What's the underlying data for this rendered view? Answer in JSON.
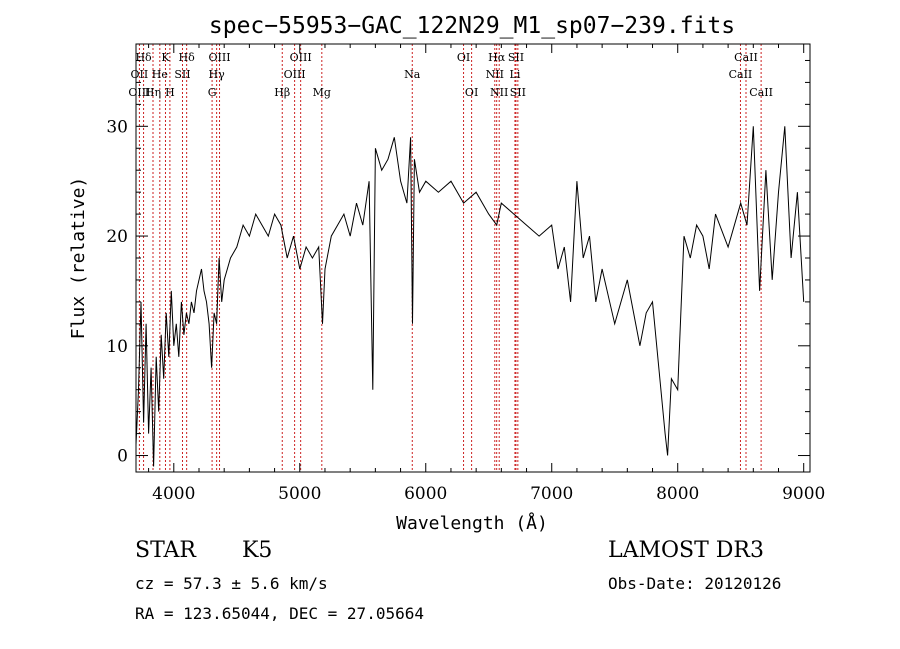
{
  "chart_data": {
    "type": "line",
    "title": "spec−55953−GAC_122N29_M1_sp07−239.fits",
    "xlabel": "Wavelength (Å)",
    "ylabel": "Flux (relative)",
    "xlim": [
      3700,
      9050
    ],
    "ylim": [
      -1.5,
      37.5
    ],
    "xticks": [
      4000,
      5000,
      6000,
      7000,
      8000,
      9000
    ],
    "yticks": [
      0,
      10,
      20,
      30
    ],
    "grid": false,
    "series": [
      {
        "name": "flux",
        "x": [
          3700,
          3720,
          3740,
          3760,
          3780,
          3800,
          3820,
          3840,
          3860,
          3880,
          3900,
          3920,
          3940,
          3960,
          3980,
          4000,
          4020,
          4040,
          4060,
          4080,
          4100,
          4120,
          4140,
          4160,
          4180,
          4200,
          4220,
          4240,
          4260,
          4280,
          4300,
          4320,
          4340,
          4360,
          4380,
          4400,
          4450,
          4500,
          4550,
          4600,
          4650,
          4700,
          4750,
          4800,
          4850,
          4900,
          4950,
          5000,
          5050,
          5100,
          5150,
          5180,
          5200,
          5250,
          5300,
          5350,
          5400,
          5450,
          5500,
          5550,
          5580,
          5600,
          5650,
          5700,
          5750,
          5800,
          5850,
          5880,
          5895,
          5910,
          5950,
          6000,
          6100,
          6200,
          6300,
          6400,
          6500,
          6563,
          6600,
          6700,
          6800,
          6900,
          7000,
          7050,
          7100,
          7150,
          7200,
          7250,
          7300,
          7350,
          7400,
          7500,
          7600,
          7700,
          7750,
          7800,
          7850,
          7900,
          7920,
          7950,
          8000,
          8050,
          8100,
          8150,
          8200,
          8250,
          8300,
          8400,
          8500,
          8550,
          8600,
          8650,
          8700,
          8750,
          8800,
          8850,
          8900,
          8950,
          9000
        ],
        "y": [
          1,
          6,
          14,
          3,
          12,
          2,
          8,
          -1,
          9,
          4,
          11,
          7,
          13,
          9,
          15,
          10,
          12,
          9,
          14,
          11,
          13,
          12,
          14,
          13,
          15,
          16,
          17,
          15,
          14,
          12,
          8,
          13,
          12,
          18,
          14,
          16,
          18,
          19,
          21,
          20,
          22,
          21,
          20,
          22,
          21,
          18,
          20,
          17,
          19,
          18,
          19,
          12,
          17,
          20,
          21,
          22,
          20,
          23,
          21,
          25,
          6,
          28,
          26,
          27,
          29,
          25,
          23,
          29,
          12,
          27,
          24,
          25,
          24,
          25,
          23,
          24,
          22,
          21,
          23,
          22,
          21,
          20,
          21,
          17,
          19,
          14,
          25,
          18,
          20,
          14,
          17,
          12,
          16,
          10,
          13,
          14,
          8,
          2,
          0,
          7,
          6,
          20,
          18,
          21,
          20,
          17,
          22,
          19,
          23,
          21,
          30,
          15,
          26,
          16,
          24,
          30,
          18,
          24,
          14
        ]
      }
    ],
    "emission_lines": [
      {
        "label": "Hδ",
        "x": 4102,
        "row": 0
      },
      {
        "label": "K",
        "x": 3934,
        "row": 0
      },
      {
        "label": "Hδ",
        "x": 3760,
        "row": 0
      },
      {
        "label": "OIII",
        "x": 4363,
        "row": 0
      },
      {
        "label": "OIII",
        "x": 5007,
        "row": 0
      },
      {
        "label": "OI",
        "x": 6300,
        "row": 0
      },
      {
        "label": "Hα",
        "x": 6563,
        "row": 0
      },
      {
        "label": "SII",
        "x": 6716,
        "row": 0
      },
      {
        "label": "CaII",
        "x": 8542,
        "row": 0
      },
      {
        "label": "OII",
        "x": 3727,
        "row": 1
      },
      {
        "label": "He",
        "x": 3889,
        "row": 1
      },
      {
        "label": "SII",
        "x": 4069,
        "row": 1
      },
      {
        "label": "Hγ",
        "x": 4340,
        "row": 1
      },
      {
        "label": "OIII",
        "x": 4959,
        "row": 1
      },
      {
        "label": "Na",
        "x": 5893,
        "row": 1
      },
      {
        "label": "NII",
        "x": 6548,
        "row": 1
      },
      {
        "label": "Li",
        "x": 6708,
        "row": 1
      },
      {
        "label": "CaII",
        "x": 8498,
        "row": 1
      },
      {
        "label": "OIII",
        "x": 3727,
        "row": 2
      },
      {
        "label": "Hη",
        "x": 3835,
        "row": 2
      },
      {
        "label": "H",
        "x": 3969,
        "row": 2
      },
      {
        "label": "G",
        "x": 4304,
        "row": 2
      },
      {
        "label": "Hβ",
        "x": 4861,
        "row": 2
      },
      {
        "label": "Mg",
        "x": 5175,
        "row": 2
      },
      {
        "label": "OI",
        "x": 6364,
        "row": 2
      },
      {
        "label": "NII",
        "x": 6583,
        "row": 2
      },
      {
        "label": "SII",
        "x": 6731,
        "row": 2
      },
      {
        "label": "CaII",
        "x": 8662,
        "row": 2
      }
    ]
  },
  "info": {
    "object_class": "STAR",
    "subclass": "K5",
    "survey": "LAMOST DR3",
    "cz_line": "cz = 57.3 ± 5.6 km/s",
    "obs_date_line": "Obs-Date: 20120126",
    "radec_line": "RA = 123.65044, DEC =  27.05664"
  }
}
